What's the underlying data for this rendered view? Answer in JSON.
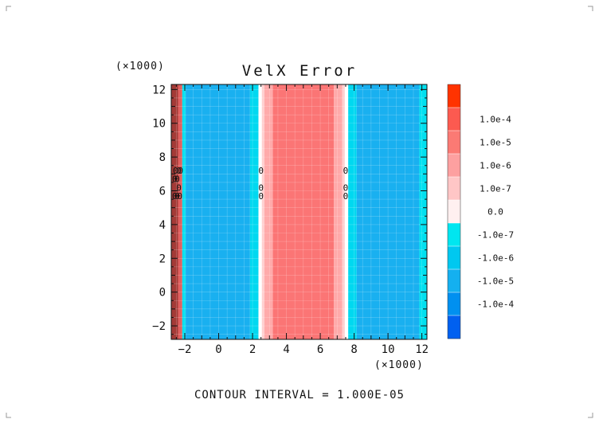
{
  "chart_data": {
    "type": "heatmap",
    "title": "VelX Error",
    "x_multiplier": "(×1000)",
    "y_multiplier": "(×1000)",
    "xlim": [
      -2.8,
      12.3
    ],
    "ylim": [
      -2.8,
      12.3
    ],
    "x_ticks": [
      -2,
      0,
      2,
      4,
      6,
      8,
      10,
      12
    ],
    "y_ticks": [
      -2,
      0,
      2,
      4,
      6,
      8,
      10,
      12
    ],
    "x_tick_labels": [
      "−2",
      "0",
      "2",
      "4",
      "6",
      "8",
      "10",
      "12"
    ],
    "y_tick_labels": [
      "−2",
      "0",
      "2",
      "4",
      "6",
      "8",
      "10",
      "12"
    ],
    "grid": true,
    "bands": [
      {
        "x0": -2.8,
        "x1": -2.4,
        "color": "#a33a36"
      },
      {
        "x0": -2.4,
        "x1": -2.15,
        "color": "#e06060"
      },
      {
        "x0": -2.15,
        "x1": -1.95,
        "color": "#00e0f0"
      },
      {
        "x0": -1.95,
        "x1": 1.85,
        "color": "#19b0f0"
      },
      {
        "x0": 1.85,
        "x1": 2.35,
        "color": "#00d8f0"
      },
      {
        "x0": 2.35,
        "x1": 2.55,
        "color": "#ffffff"
      },
      {
        "x0": 2.55,
        "x1": 2.7,
        "color": "#ffd0d0"
      },
      {
        "x0": 2.7,
        "x1": 3.2,
        "color": "#ffaaaa"
      },
      {
        "x0": 3.2,
        "x1": 6.8,
        "color": "#fb7575"
      },
      {
        "x0": 6.8,
        "x1": 7.3,
        "color": "#ffaaaa"
      },
      {
        "x0": 7.3,
        "x1": 7.45,
        "color": "#ffd0d0"
      },
      {
        "x0": 7.45,
        "x1": 7.65,
        "color": "#ffffff"
      },
      {
        "x0": 7.65,
        "x1": 8.15,
        "color": "#00d8f0"
      },
      {
        "x0": 8.15,
        "x1": 11.85,
        "color": "#19b0f0"
      },
      {
        "x0": 11.85,
        "x1": 12.3,
        "color": "#00e0f0"
      }
    ],
    "contour_label": "0",
    "contour_labels": [
      {
        "x": -2.55,
        "y": 7.2
      },
      {
        "x": -2.35,
        "y": 7.2
      },
      {
        "x": -2.25,
        "y": 7.2
      },
      {
        "x": -2.6,
        "y": 6.7
      },
      {
        "x": -2.45,
        "y": 6.7
      },
      {
        "x": -2.35,
        "y": 6.2
      },
      {
        "x": -2.6,
        "y": 5.7
      },
      {
        "x": -2.45,
        "y": 5.7
      },
      {
        "x": -2.3,
        "y": 5.7
      },
      {
        "x": 2.5,
        "y": 7.2
      },
      {
        "x": 2.5,
        "y": 6.2
      },
      {
        "x": 2.5,
        "y": 5.7
      },
      {
        "x": 7.5,
        "y": 7.2
      },
      {
        "x": 7.5,
        "y": 6.2
      },
      {
        "x": 7.5,
        "y": 5.7
      }
    ],
    "colorbar": {
      "levels": [
        {
          "label": "",
          "color": "#ff3300"
        },
        {
          "label": "1.0e-4",
          "color": "#fc5a50"
        },
        {
          "label": "1.0e-5",
          "color": "#fb7a74"
        },
        {
          "label": "1.0e-6",
          "color": "#fda0a0"
        },
        {
          "label": "1.0e-7",
          "color": "#ffc6c6"
        },
        {
          "label": "0.0",
          "color": "#fff0f0"
        },
        {
          "label": "-1.0e-7",
          "color": "#00e6f0"
        },
        {
          "label": "-1.0e-6",
          "color": "#00c8f0"
        },
        {
          "label": "-1.0e-5",
          "color": "#14b0f0"
        },
        {
          "label": "-1.0e-4",
          "color": "#0090f0"
        },
        {
          "label": "",
          "color": "#0060f0"
        }
      ]
    },
    "footer": "CONTOUR INTERVAL = 1.000E-05"
  }
}
